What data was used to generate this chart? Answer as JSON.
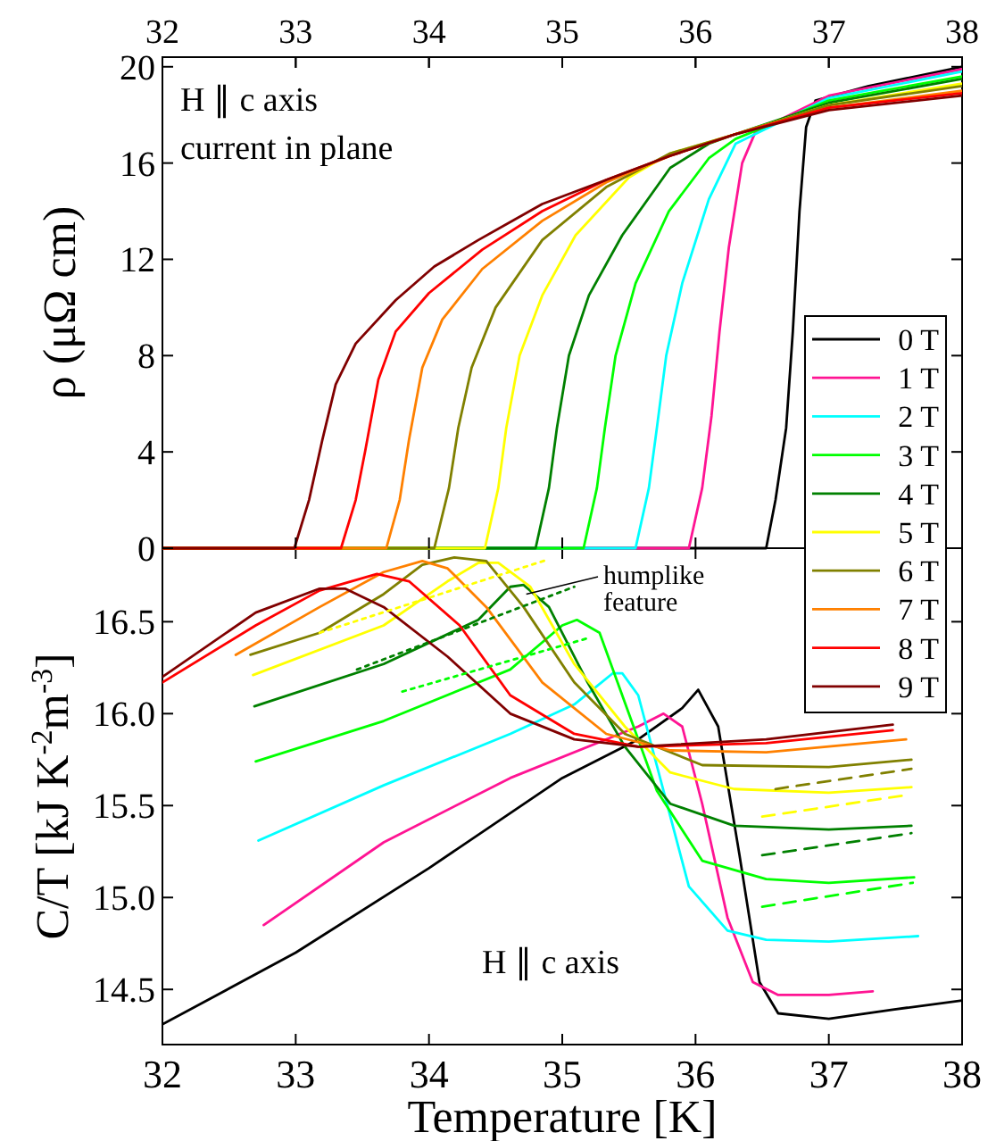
{
  "chart_data": [
    {
      "type": "line",
      "ylabel": "ρ (μΩ cm)",
      "annotations": [
        "H ∥ c axis",
        "current in plane"
      ],
      "xlim": [
        32,
        38
      ],
      "xticks": [
        32,
        33,
        34,
        35,
        36,
        37,
        38
      ],
      "ylim": [
        0,
        20.4
      ],
      "yticks": [
        0,
        4,
        8,
        12,
        16,
        20
      ],
      "tick_labels": "y",
      "x2lim": [
        32,
        38
      ],
      "x2ticks": [
        32,
        33,
        34,
        35,
        36,
        37,
        38
      ],
      "legend": "bottom right",
      "grid": false,
      "marker": "none",
      "line_style": "solid",
      "series": [
        {
          "name": "0 T",
          "color": "#000000",
          "x": [
            32,
            36.53,
            36.6,
            36.68,
            36.73,
            36.78,
            36.83,
            36.9,
            37.3,
            38
          ],
          "values": [
            0,
            0,
            2,
            5,
            9,
            14,
            17.5,
            18.6,
            19.2,
            20.0
          ]
        },
        {
          "name": "1 T",
          "color": "#ff1493",
          "x": [
            32,
            35.95,
            36.05,
            36.12,
            36.18,
            36.25,
            36.35,
            36.45,
            37,
            38
          ],
          "values": [
            0,
            0,
            2.5,
            5.5,
            9,
            12.5,
            16,
            17.3,
            18.8,
            19.9
          ]
        },
        {
          "name": "2 T",
          "color": "#00ffff",
          "x": [
            32,
            35.55,
            35.65,
            35.71,
            35.78,
            35.9,
            36.1,
            36.3,
            37,
            38
          ],
          "values": [
            0,
            0,
            2.5,
            5,
            8,
            11,
            14.5,
            16.8,
            18.7,
            19.8
          ]
        },
        {
          "name": "3 T",
          "color": "#00ff00",
          "x": [
            32,
            35.16,
            35.26,
            35.32,
            35.4,
            35.55,
            35.8,
            36.1,
            36.3,
            37,
            38
          ],
          "values": [
            0,
            0,
            2.5,
            5,
            8,
            11,
            14,
            16.2,
            17.0,
            18.6,
            19.6
          ]
        },
        {
          "name": "4 T",
          "color": "#008000",
          "x": [
            32,
            34.8,
            34.9,
            34.96,
            35.05,
            35.2,
            35.45,
            35.81,
            36.1,
            36.3,
            37,
            38
          ],
          "values": [
            0,
            0,
            2.5,
            5,
            8,
            10.5,
            13,
            15.8,
            16.8,
            17.2,
            18.5,
            19.5
          ]
        },
        {
          "name": "5 T",
          "color": "#ffff00",
          "x": [
            32,
            34.42,
            34.52,
            34.58,
            34.68,
            34.85,
            35.1,
            35.5,
            35.81,
            36.3,
            37,
            38
          ],
          "values": [
            0,
            0,
            2.5,
            5,
            8,
            10.5,
            13,
            15.4,
            16.4,
            17.2,
            18.4,
            19.3
          ]
        },
        {
          "name": "6 T",
          "color": "#808000",
          "x": [
            32,
            34.04,
            34.15,
            34.22,
            34.32,
            34.5,
            34.85,
            35.33,
            35.81,
            36.3,
            37,
            38
          ],
          "values": [
            0,
            0,
            2.5,
            5,
            7.5,
            10,
            12.8,
            15.0,
            16.4,
            17.2,
            18.4,
            19.2
          ]
        },
        {
          "name": "7 T",
          "color": "#ff8000",
          "x": [
            32,
            33.68,
            33.78,
            33.85,
            33.95,
            34.1,
            34.4,
            34.85,
            35.33,
            35.81,
            36.3,
            37,
            38
          ],
          "values": [
            0,
            0,
            2,
            4.5,
            7.5,
            9.5,
            11.6,
            13.6,
            15.2,
            16.3,
            17.2,
            18.3,
            19.0
          ]
        },
        {
          "name": "8 T",
          "color": "#ff0000",
          "x": [
            32,
            33.34,
            33.45,
            33.52,
            33.62,
            33.75,
            34,
            34.4,
            34.85,
            35.33,
            35.81,
            36.3,
            37,
            38
          ],
          "values": [
            0,
            0,
            2,
            4,
            7,
            9,
            10.6,
            12.4,
            14.0,
            15.3,
            16.3,
            17.2,
            18.3,
            18.9
          ]
        },
        {
          "name": "9 T",
          "color": "#800000",
          "x": [
            32,
            32.99,
            33.1,
            33.2,
            33.3,
            33.45,
            33.75,
            34.04,
            34.37,
            34.85,
            35.33,
            35.81,
            36.3,
            37,
            38
          ],
          "values": [
            0,
            0,
            2,
            4.5,
            6.8,
            8.5,
            10.3,
            11.7,
            12.8,
            14.3,
            15.3,
            16.3,
            17.2,
            18.2,
            18.8
          ]
        }
      ]
    },
    {
      "type": "line",
      "xlabel": "Temperature [K]",
      "ylabel": "C/T [kJ K$^{-2}$m$^{-3}$]",
      "annotations": [
        "H ∥ c axis",
        {
          "text": "humplike feature",
          "x": 34.73,
          "y": 16.65
        }
      ],
      "xlim": [
        32,
        38
      ],
      "xticks": [
        32,
        33,
        34,
        35,
        36,
        37,
        38
      ],
      "ylim": [
        14.2,
        16.9
      ],
      "yticks": [
        14.5,
        {
          "value": 15,
          "label": "15.0"
        },
        15.5,
        {
          "value": 16,
          "label": "16.0"
        },
        16.5
      ],
      "legend": false,
      "grid": false,
      "marker": "none",
      "line_style": "solid",
      "series": [
        {
          "color": "#000000",
          "x": [
            32,
            33,
            34,
            35,
            35.57,
            35.9,
            36.02,
            36.17,
            36.33,
            36.48,
            36.62,
            37,
            37.48,
            38
          ],
          "values": [
            14.31,
            14.7,
            15.16,
            15.65,
            15.86,
            16.03,
            16.13,
            15.93,
            15.23,
            14.54,
            14.37,
            14.34,
            14.39,
            14.44
          ]
        },
        {
          "color": "#ff1493",
          "x": [
            32.76,
            33.66,
            34.61,
            35.57,
            35.76,
            35.9,
            36.05,
            36.24,
            36.43,
            36.62,
            37,
            37.33
          ],
          "values": [
            14.85,
            15.3,
            15.65,
            15.93,
            16.0,
            15.93,
            15.51,
            14.89,
            14.54,
            14.47,
            14.47,
            14.49
          ]
        },
        {
          "color": "#00ffff",
          "x": [
            32.72,
            33.66,
            34.61,
            35.09,
            35.38,
            35.45,
            35.57,
            35.76,
            35.95,
            36.24,
            36.53,
            37,
            37.67
          ],
          "values": [
            15.31,
            15.61,
            15.89,
            16.05,
            16.22,
            16.22,
            16.1,
            15.58,
            15.06,
            14.82,
            14.77,
            14.76,
            14.79
          ]
        },
        {
          "color": "#00ff00",
          "x": [
            32.7,
            33.66,
            34.61,
            35,
            35.11,
            35.28,
            35.47,
            35.71,
            36.05,
            36.53,
            37,
            37.64
          ],
          "values": [
            15.74,
            15.96,
            16.24,
            16.48,
            16.51,
            16.44,
            16.06,
            15.58,
            15.2,
            15.1,
            15.08,
            15.11
          ]
        },
        {
          "color": "#008000",
          "x": [
            32.69,
            33.66,
            34.37,
            34.61,
            34.71,
            34.9,
            35.19,
            35.47,
            35.81,
            36.29,
            37,
            37.62
          ],
          "values": [
            16.04,
            16.27,
            16.51,
            16.69,
            16.7,
            16.58,
            16.17,
            15.82,
            15.51,
            15.39,
            15.37,
            15.39
          ]
        },
        {
          "color": "#ffff00",
          "x": [
            32.68,
            33.66,
            34.14,
            34.37,
            34.52,
            34.76,
            35.09,
            35.47,
            35.81,
            36.29,
            37,
            37.62
          ],
          "values": [
            16.21,
            16.48,
            16.72,
            16.82,
            16.82,
            16.69,
            16.27,
            15.93,
            15.68,
            15.59,
            15.57,
            15.6
          ]
        },
        {
          "color": "#808000",
          "x": [
            32.66,
            33.18,
            33.66,
            33.95,
            34.19,
            34.43,
            34.71,
            35.09,
            35.47,
            36.05,
            37,
            37.62
          ],
          "values": [
            16.32,
            16.44,
            16.65,
            16.81,
            16.85,
            16.83,
            16.58,
            16.17,
            15.89,
            15.72,
            15.71,
            15.75
          ]
        },
        {
          "color": "#ff8000",
          "x": [
            32.55,
            33.18,
            33.66,
            33.95,
            34.14,
            34.43,
            34.85,
            35.33,
            35.81,
            36.53,
            37.58
          ],
          "values": [
            16.32,
            16.58,
            16.77,
            16.83,
            16.79,
            16.58,
            16.17,
            15.89,
            15.8,
            15.79,
            15.86
          ]
        },
        {
          "color": "#ff0000",
          "x": [
            32,
            32.7,
            33.18,
            33.61,
            33.85,
            34.23,
            34.61,
            35.09,
            35.57,
            36.53,
            37.48
          ],
          "values": [
            16.17,
            16.48,
            16.67,
            16.76,
            16.72,
            16.48,
            16.1,
            15.89,
            15.82,
            15.84,
            15.91
          ]
        },
        {
          "color": "#800000",
          "x": [
            32,
            32.7,
            33.18,
            33.37,
            33.66,
            34.14,
            34.61,
            35.09,
            35.57,
            36.53,
            37.48
          ],
          "values": [
            16.2,
            16.55,
            16.68,
            16.68,
            16.58,
            16.31,
            16.0,
            15.86,
            15.82,
            15.86,
            15.94
          ]
        },
        {
          "color": "#808000",
          "line_style": "dashed",
          "x": [
            36.6,
            37.62
          ],
          "values": [
            15.59,
            15.7
          ]
        },
        {
          "color": "#ffff00",
          "line_style": "dashed",
          "x": [
            36.5,
            37.61
          ],
          "values": [
            15.44,
            15.56
          ]
        },
        {
          "color": "#008000",
          "line_style": "dashed",
          "x": [
            36.5,
            37.62
          ],
          "values": [
            15.23,
            15.35
          ]
        },
        {
          "color": "#00ff00",
          "line_style": "dashed",
          "x": [
            36.5,
            37.63
          ],
          "values": [
            14.95,
            15.08
          ]
        },
        {
          "color": "#ffff00",
          "line_style": "dotted",
          "x": [
            33.18,
            34.9
          ],
          "values": [
            16.44,
            16.84
          ]
        },
        {
          "color": "#008000",
          "line_style": "dotted",
          "x": [
            33.46,
            35.09
          ],
          "values": [
            16.24,
            16.69
          ]
        },
        {
          "color": "#00ff00",
          "line_style": "dotted",
          "x": [
            33.8,
            35.19
          ],
          "values": [
            16.12,
            16.41
          ]
        }
      ]
    }
  ]
}
